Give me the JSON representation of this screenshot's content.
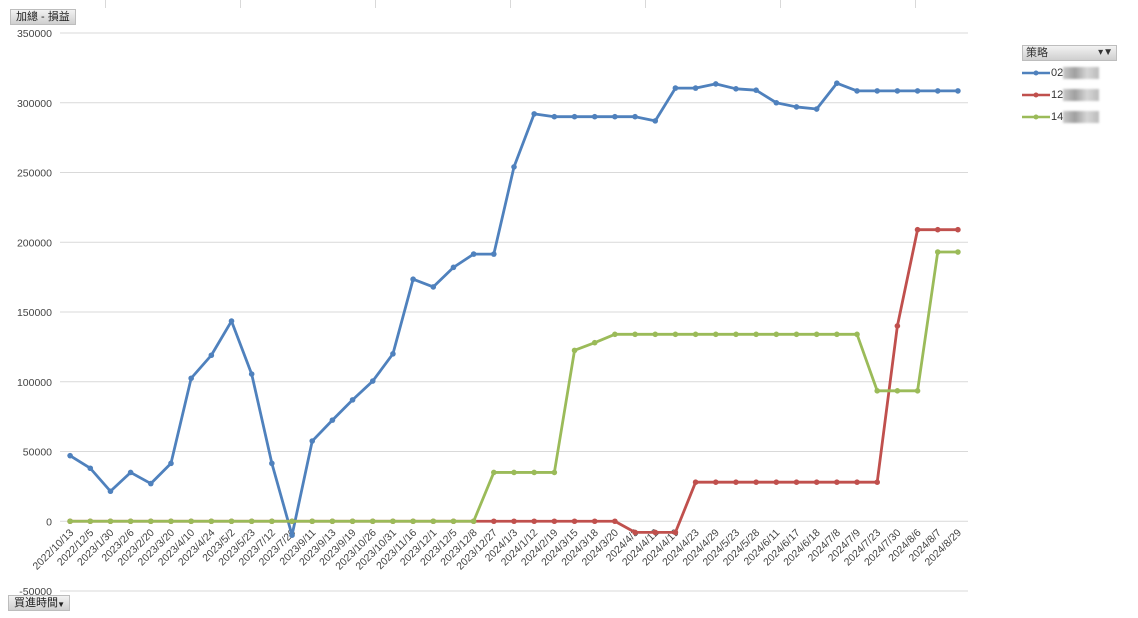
{
  "title_button": "加總 - 損益",
  "x_field_button": "買進時間",
  "legend": {
    "header": "策略",
    "items": [
      "02",
      "12",
      "14"
    ]
  },
  "chart_data": {
    "type": "line",
    "title": "",
    "ylim": [
      -50000,
      350000
    ],
    "yticks": [
      -50000,
      0,
      50000,
      100000,
      150000,
      200000,
      250000,
      300000,
      350000
    ],
    "grid": true,
    "legend_position": "top-right",
    "categories": [
      "2022/10/13",
      "2022/12/5",
      "2023/1/30",
      "2023/2/6",
      "2023/2/20",
      "2023/3/20",
      "2023/4/10",
      "2023/4/24",
      "2023/5/2",
      "2023/5/23",
      "2023/7/12",
      "2023/7/26",
      "2023/9/11",
      "2023/9/13",
      "2023/9/19",
      "2023/10/26",
      "2023/10/31",
      "2023/11/16",
      "2023/12/1",
      "2023/12/5",
      "2023/12/8",
      "2023/12/27",
      "2024/1/3",
      "2024/1/12",
      "2024/2/19",
      "2024/3/15",
      "2024/3/18",
      "2024/3/20",
      "2024/4/3",
      "2024/4/12",
      "2024/4/19",
      "2024/4/23",
      "2024/4/29",
      "2024/5/23",
      "2024/5/28",
      "2024/6/11",
      "2024/6/17",
      "2024/6/18",
      "2024/7/8",
      "2024/7/9",
      "2024/7/23",
      "2024/7/30",
      "2024/8/6",
      "2024/8/7",
      "2024/8/29"
    ],
    "series": [
      {
        "name": "02",
        "color": "#4f81bd",
        "values": [
          47000,
          38000,
          21500,
          35000,
          27000,
          41500,
          102500,
          119000,
          143500,
          105500,
          41500,
          -10000,
          57500,
          72500,
          87000,
          100500,
          120000,
          173500,
          168000,
          182000,
          191500,
          191500,
          254000,
          292000,
          290000,
          290000,
          290000,
          290000,
          290000,
          287000,
          310500,
          310500,
          313500,
          310000,
          309000,
          300000,
          297000,
          295500,
          314000,
          308500,
          308500,
          308500,
          308500,
          308500,
          308500
        ]
      },
      {
        "name": "12",
        "color": "#c0504d",
        "values": [
          0,
          0,
          0,
          0,
          0,
          0,
          0,
          0,
          0,
          0,
          0,
          0,
          0,
          0,
          0,
          0,
          0,
          0,
          0,
          0,
          0,
          0,
          0,
          0,
          0,
          0,
          0,
          0,
          -8000,
          -8000,
          -8000,
          28000,
          28000,
          28000,
          28000,
          28000,
          28000,
          28000,
          28000,
          28000,
          28000,
          140000,
          209000,
          209000,
          209000
        ]
      },
      {
        "name": "14",
        "color": "#9bbb59",
        "values": [
          0,
          0,
          0,
          0,
          0,
          0,
          0,
          0,
          0,
          0,
          0,
          0,
          0,
          0,
          0,
          0,
          0,
          0,
          0,
          0,
          0,
          35000,
          35000,
          35000,
          35000,
          122500,
          128000,
          134000,
          134000,
          134000,
          134000,
          134000,
          134000,
          134000,
          134000,
          134000,
          134000,
          134000,
          134000,
          134000,
          93500,
          93500,
          93500,
          193000,
          193000
        ]
      }
    ]
  }
}
